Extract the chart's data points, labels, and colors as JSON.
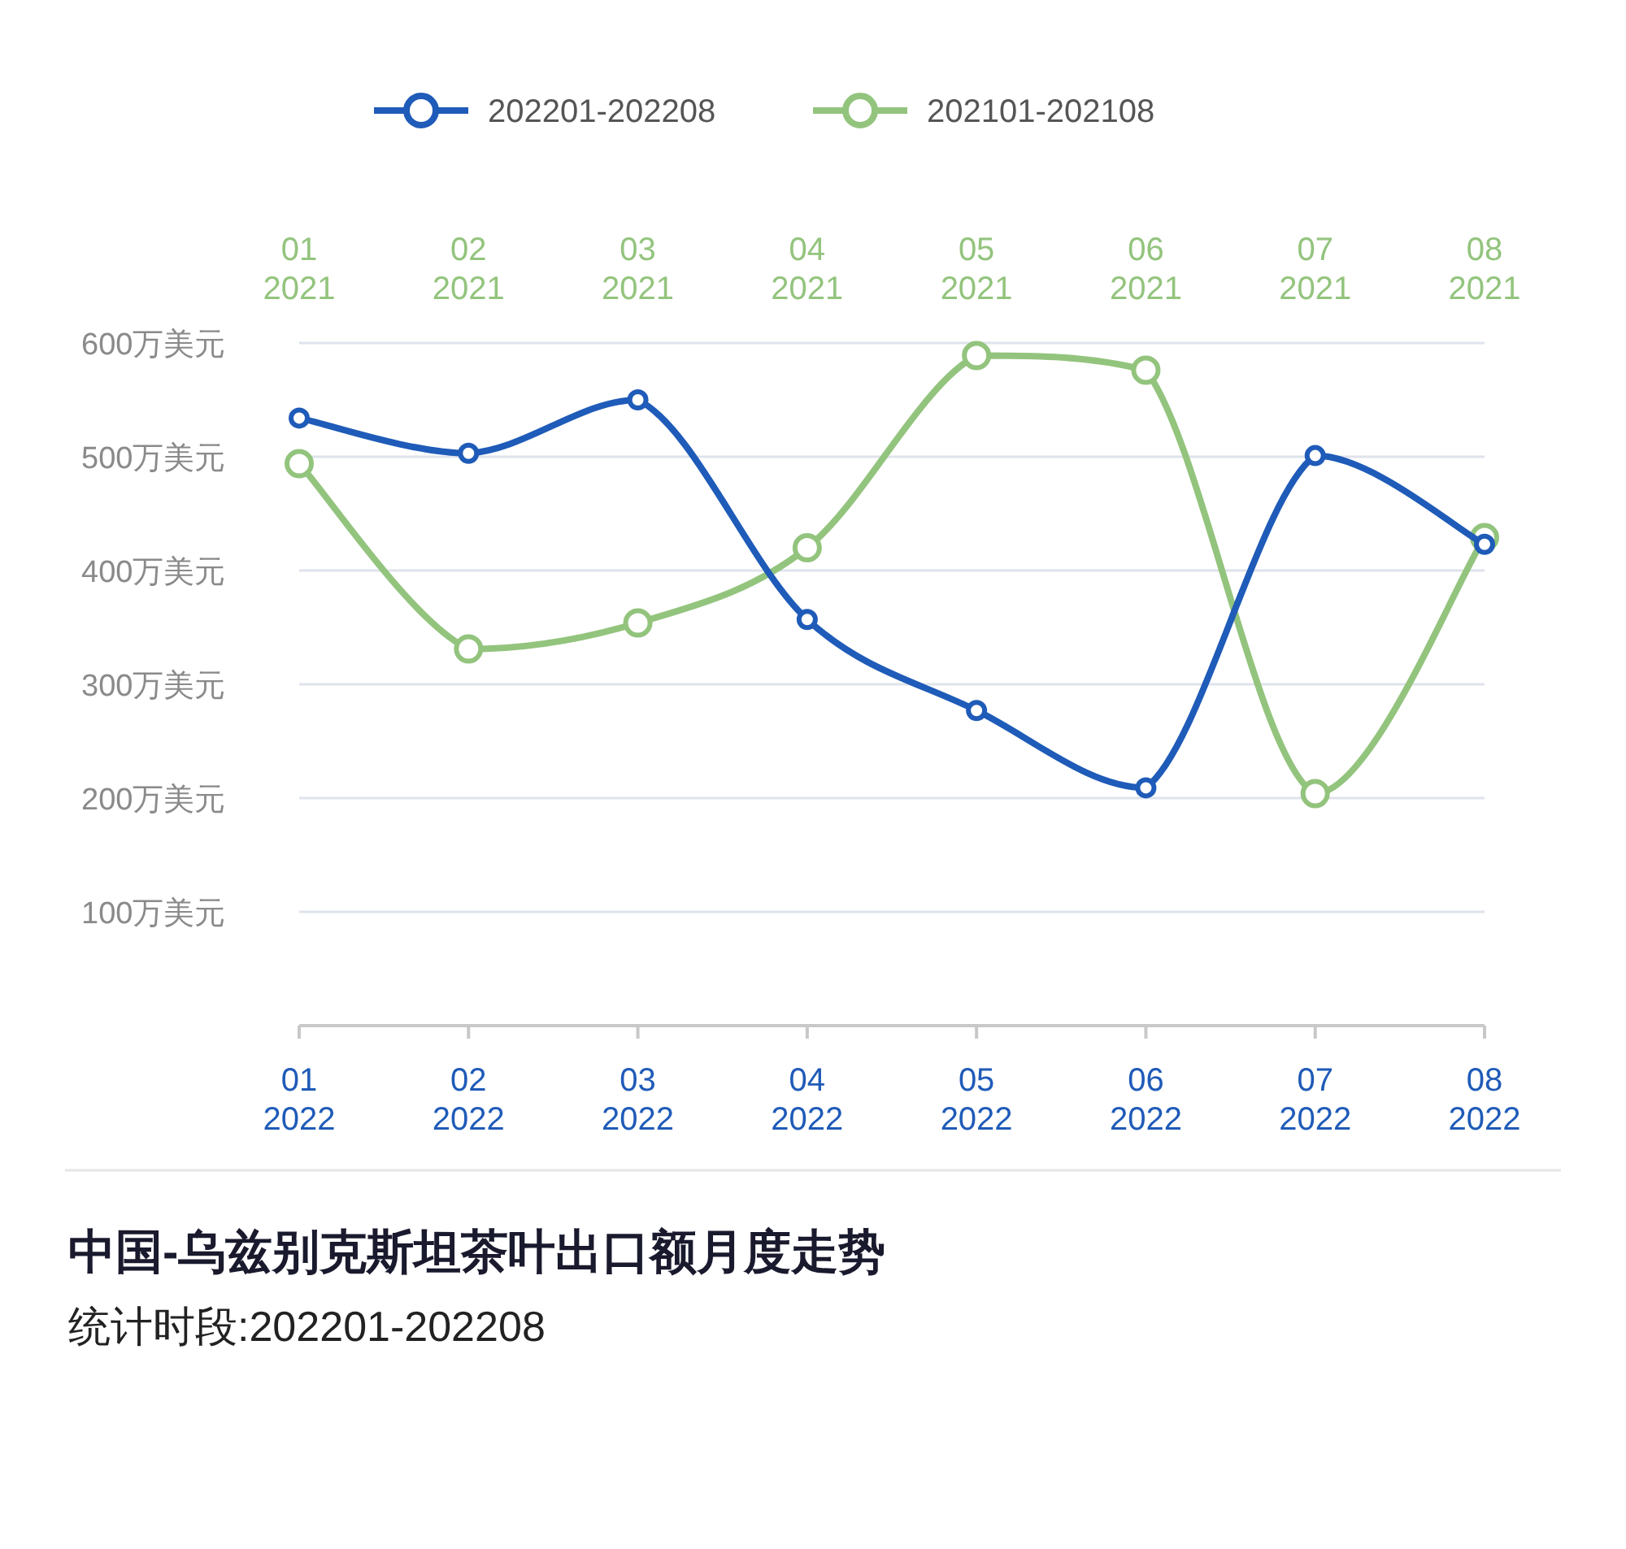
{
  "chart_data": {
    "type": "line",
    "title": "中国-乌兹别克斯坦茶叶出口额月度走势",
    "subtitle": "统计时段:202201-202208",
    "categories": [
      "01\n2022",
      "02\n2022",
      "03\n2022",
      "04\n2022",
      "05\n2022",
      "06\n2022",
      "07\n2022",
      "08\n2022"
    ],
    "series": [
      {
        "name": "202201-202208",
        "color": "#1f5bb8",
        "values": [
          534,
          503,
          550,
          357,
          277,
          209,
          501,
          423
        ]
      },
      {
        "name": "202101-202108",
        "color": "#93c47d",
        "values": [
          494,
          331,
          354,
          420,
          589,
          576,
          204,
          429
        ]
      }
    ],
    "annotations": [
      "01\n2021",
      "02\n2021",
      "03\n2021",
      "04\n2021",
      "05\n2021",
      "06\n2021",
      "07\n2021",
      "08\n2021"
    ],
    "ylim": [
      0,
      600
    ],
    "yticks": [
      {
        "value": 0,
        "label": null
      },
      {
        "value": 100,
        "label": "100万美元"
      },
      {
        "value": 200,
        "label": "200万美元"
      },
      {
        "value": 300,
        "label": "300万美元"
      },
      {
        "value": 400,
        "label": "400万美元"
      },
      {
        "value": 500,
        "label": "500万美元"
      },
      {
        "value": 600,
        "label": "600万美元"
      }
    ],
    "grid": "y",
    "legend": "top",
    "marker": "circle",
    "line_style": "solid"
  }
}
